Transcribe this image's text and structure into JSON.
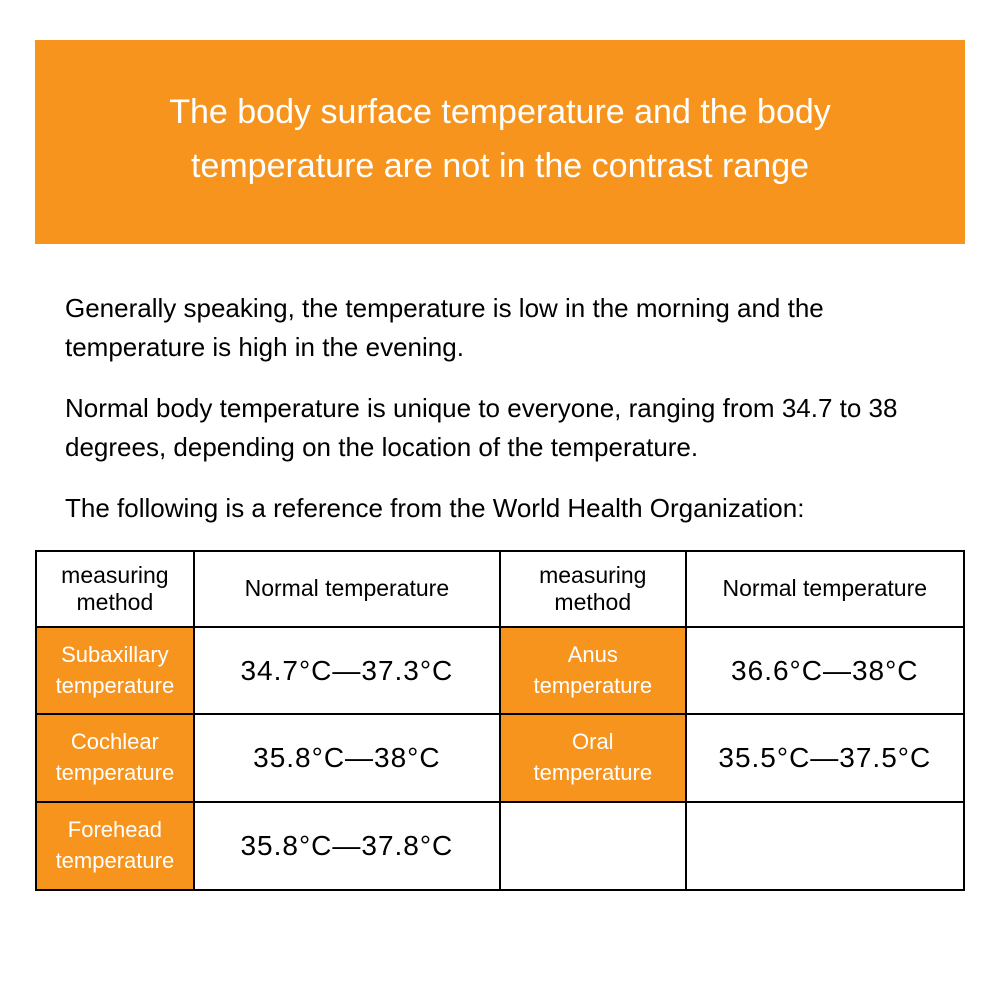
{
  "header": {
    "title": "The body surface temperature and the body temperature are not in the contrast range",
    "bg_color": "#f7941e",
    "text_color": "#ffffff",
    "font_size": 34
  },
  "paragraphs": {
    "p1": "Generally speaking, the temperature is low in the morning and the temperature is high in the evening.",
    "p2": "Normal body temperature is unique to everyone, ranging from 34.7 to 38 degrees, depending on the location of the temperature.",
    "p3": "The following is a reference from the World Health Organization:"
  },
  "body_text": {
    "color": "#000000",
    "font_size": 26
  },
  "table": {
    "columns": [
      {
        "key": "method_left",
        "label": "measuring\nmethod",
        "width_pct": 17
      },
      {
        "key": "normal_left",
        "label": "Normal temperature",
        "width_pct": 33
      },
      {
        "key": "method_right",
        "label": "measuring method",
        "width_pct": 20
      },
      {
        "key": "normal_right",
        "label": "Normal temperature",
        "width_pct": 30
      }
    ],
    "rows": [
      {
        "method_left": "Subaxillary\ntemperature",
        "normal_left": "34.7°C—37.3°C",
        "method_right": "Anus\ntemperature",
        "normal_right": "36.6°C—38°C"
      },
      {
        "method_left": "Cochlear\ntemperature",
        "normal_left": "35.8°C—38°C",
        "method_right": "Oral\ntemperature",
        "normal_right": "35.5°C—37.5°C"
      },
      {
        "method_left": "Forehead\ntemperature",
        "normal_left": "35.8°C—37.8°C",
        "method_right": "",
        "normal_right": ""
      }
    ],
    "method_cell_bg": "#f7941e",
    "method_cell_color": "#ffffff",
    "value_cell_bg": "#ffffff",
    "value_cell_color": "#000000",
    "border_color": "#000000",
    "header_font_size": 23,
    "method_font_size": 22,
    "value_font_size": 28
  }
}
